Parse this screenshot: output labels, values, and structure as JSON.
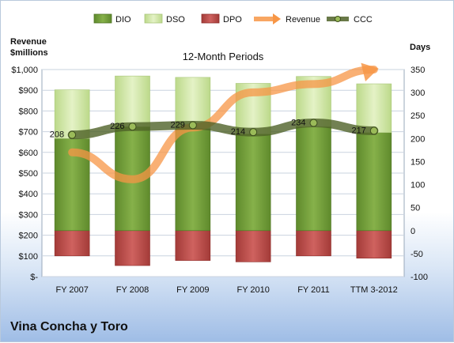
{
  "chart_data": {
    "type": "bar",
    "title": "12-Month Periods",
    "company": "Vina Concha y Toro",
    "categories": [
      "FY 2007",
      "FY 2008",
      "FY 2009",
      "FY 2010",
      "FY 2011",
      "TTM 3-2012"
    ],
    "left_axis": {
      "label_line1": "Revenue",
      "label_line2": "$millions",
      "min": 0,
      "max": 1000,
      "step": 100,
      "ticks": [
        "$-",
        "$100",
        "$200",
        "$300",
        "$400",
        "$500",
        "$600",
        "$700",
        "$800",
        "$900",
        "$1,000"
      ]
    },
    "right_axis": {
      "label": "Days",
      "min": -100,
      "max": 350,
      "step": 50,
      "ticks": [
        "-100",
        "-50",
        "0",
        "50",
        "100",
        "150",
        "200",
        "250",
        "300",
        "350"
      ]
    },
    "legend": {
      "placement": "top",
      "entries": [
        "DIO",
        "DSO",
        "DPO",
        "Revenue",
        "CCC"
      ]
    },
    "series": [
      {
        "name": "DIO",
        "axis": "days",
        "values": [
          200,
          226,
          222,
          210,
          226,
          213
        ],
        "color": "#76a03c"
      },
      {
        "name": "DSO",
        "axis": "days",
        "values": [
          106,
          110,
          111,
          110,
          109,
          106
        ],
        "color": "#d3e8a6"
      },
      {
        "name": "DPO",
        "axis": "days",
        "values": [
          -55,
          -76,
          -65,
          -68,
          -55,
          -60
        ],
        "color": "#c0504d"
      },
      {
        "name": "Revenue",
        "axis": "revenue",
        "values": [
          600,
          470,
          720,
          890,
          930,
          1000
        ],
        "color": "#f79646"
      },
      {
        "name": "CCC",
        "axis": "days",
        "values": [
          208,
          226,
          229,
          214,
          234,
          217
        ],
        "color": "#4f6228"
      }
    ],
    "ccc_labels": [
      "208",
      "226",
      "229",
      "214",
      "234",
      "217"
    ]
  }
}
